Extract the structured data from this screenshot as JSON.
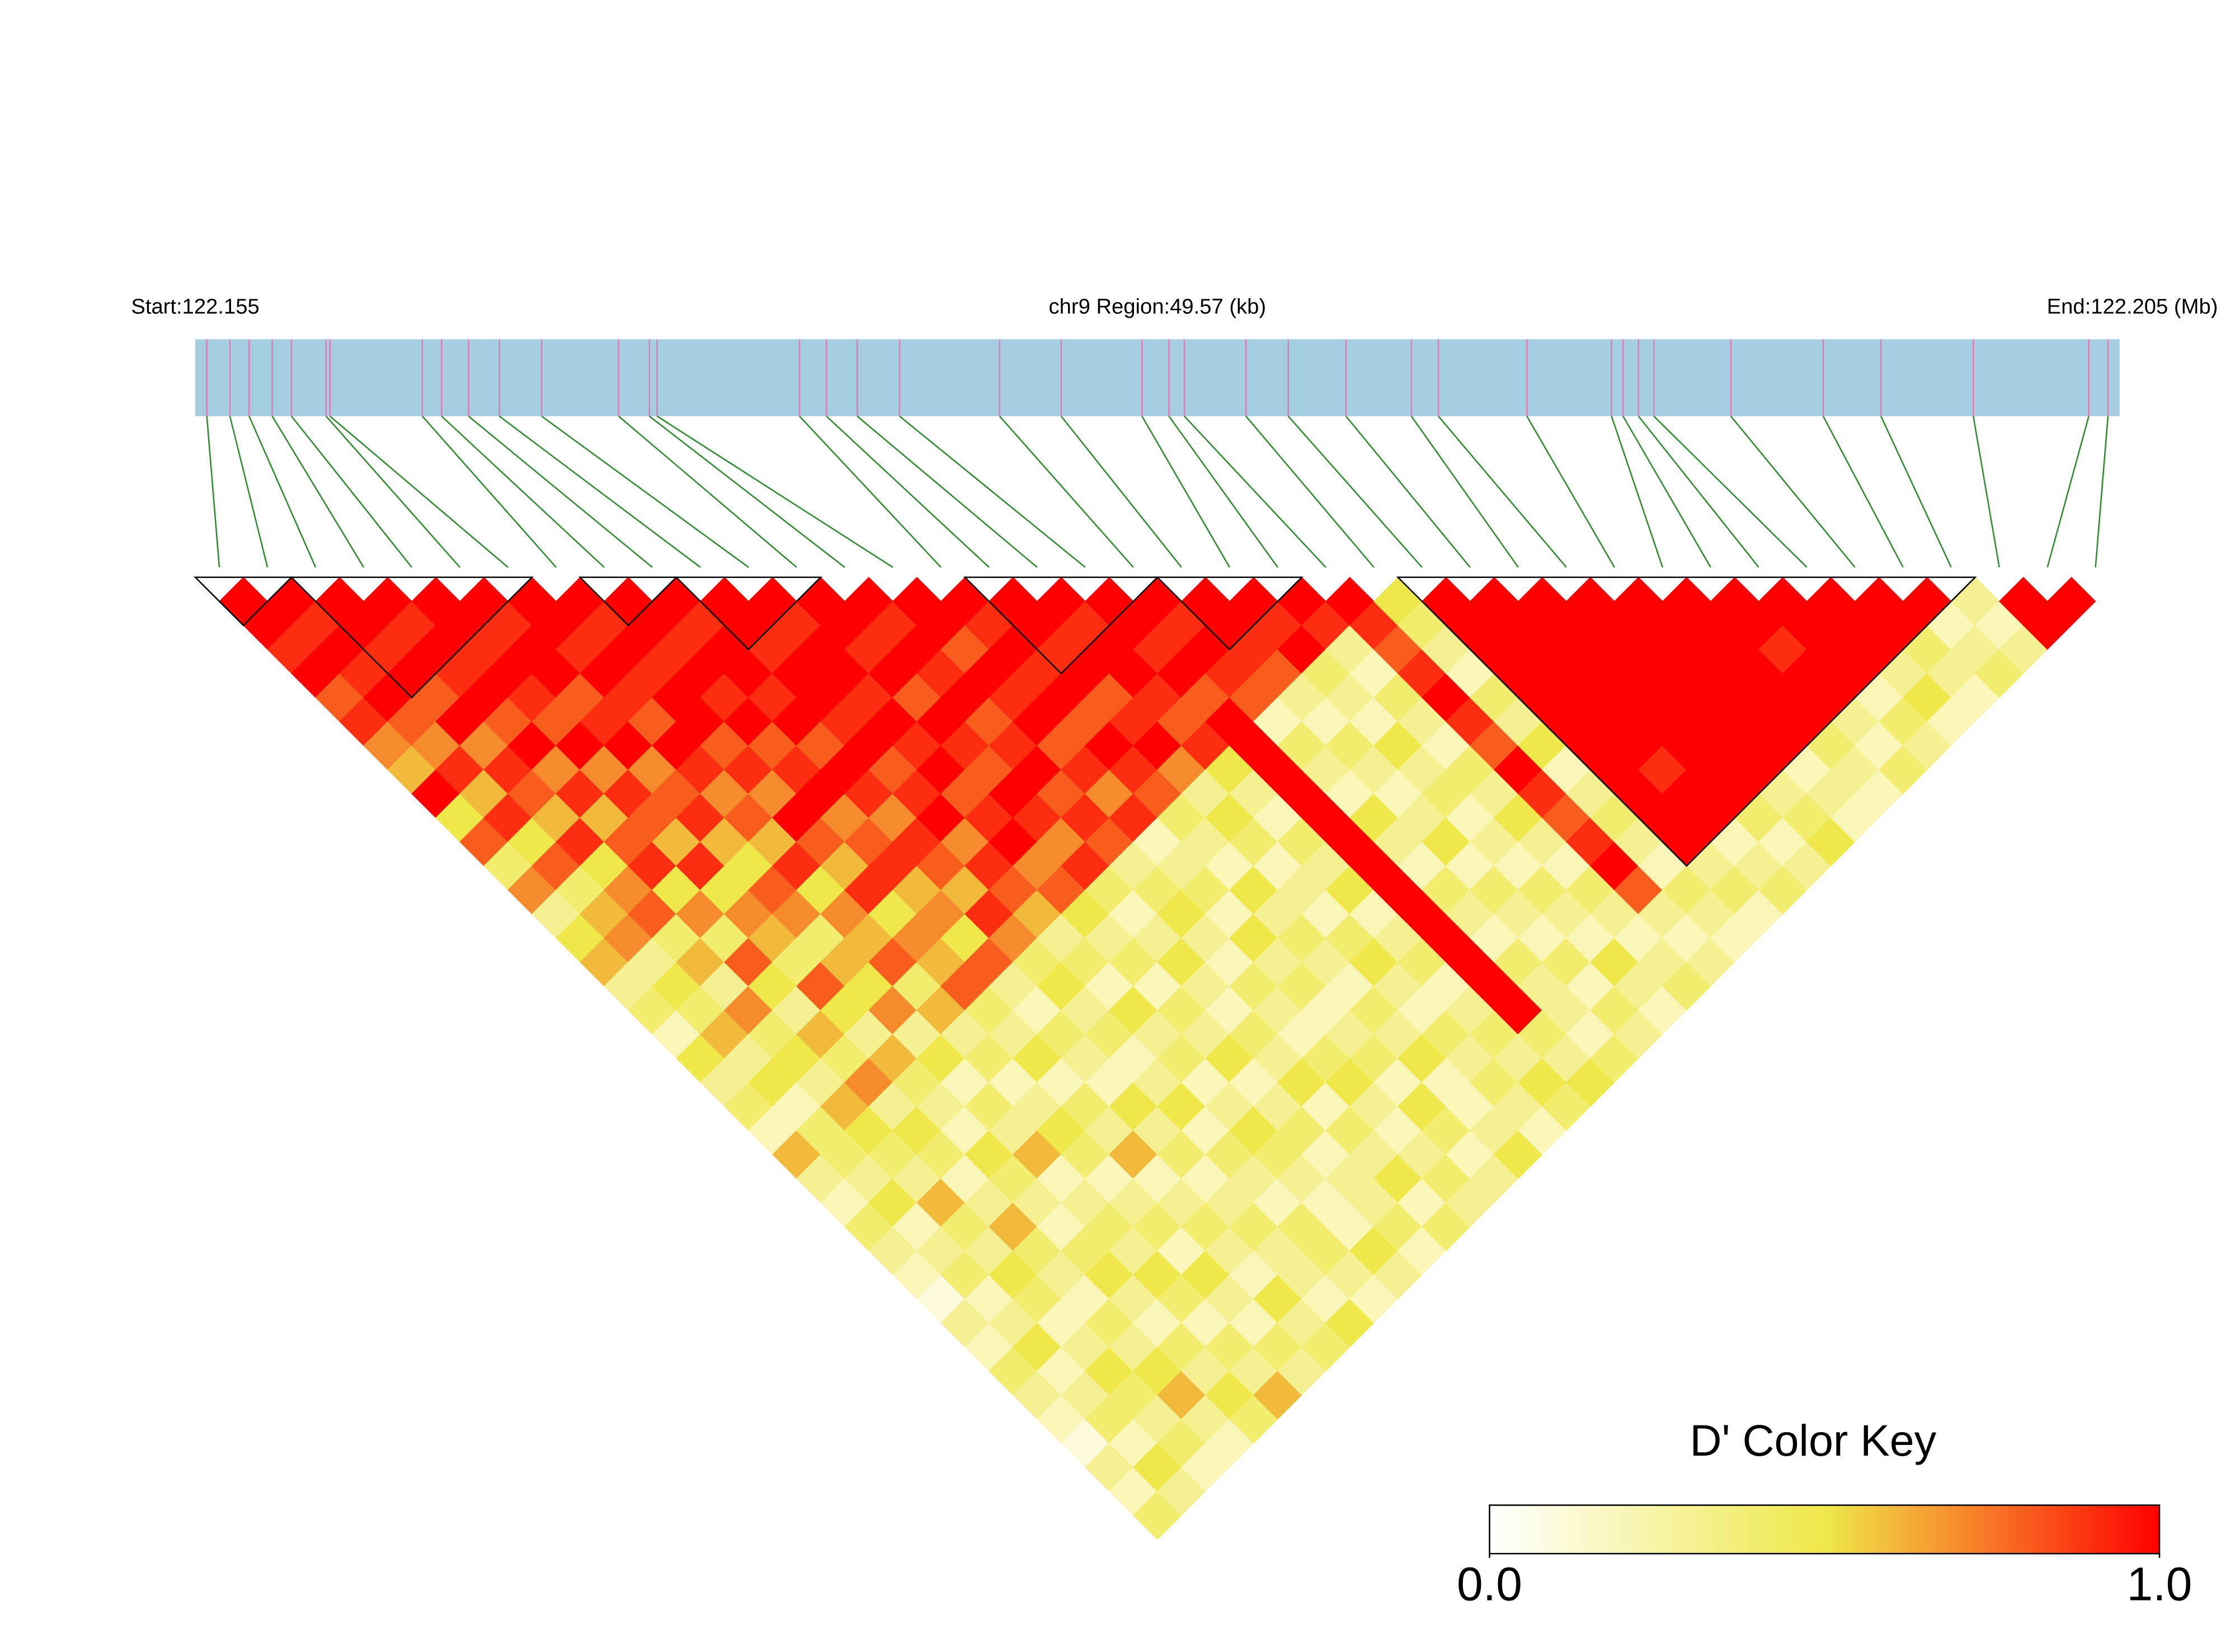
{
  "chart_data": {
    "type": "ld-heatmap",
    "region_start_label": "Start:122.155",
    "region_label": "chr9 Region:49.57 (kb)",
    "region_end_label": "End:122.205 (Mb)",
    "xlim": [
      122.155,
      122.205
    ],
    "track_color": "#a6cee3",
    "track_line_color": "#e07ab8",
    "connector_color": "#2e8b2e",
    "snp_positions": [
      122.1553,
      122.1559,
      122.1564,
      122.157,
      122.1575,
      122.1584,
      122.1585,
      122.1609,
      122.1614,
      122.1621,
      122.1629,
      122.164,
      122.166,
      122.1668,
      122.167,
      122.1707,
      122.1714,
      122.1722,
      122.1733,
      122.1759,
      122.1775,
      122.1796,
      122.1803,
      122.1807,
      122.1823,
      122.1834,
      122.1849,
      122.1866,
      122.1873,
      122.1896,
      122.1918,
      122.1921,
      122.1925,
      122.1929,
      122.1949,
      122.1973,
      122.1988,
      122.2012,
      122.2042,
      122.2047
    ],
    "matrix": [
      [
        1,
        1,
        0.9,
        1,
        0.8,
        0.9,
        0.7,
        0.6,
        1,
        0.5,
        0.8,
        0.4,
        0.7,
        0.3,
        0.5,
        0.6,
        0.3,
        0.4,
        0.2,
        0.5,
        0.3,
        0.4,
        0.2,
        0.6,
        0.3,
        0.2,
        0.4,
        0.3,
        0.2,
        0.1,
        0.3,
        0.2,
        0.4,
        0.3,
        0.2,
        0.1,
        0.3,
        0.2,
        0.4
      ],
      [
        1,
        0.9,
        1,
        0.9,
        1,
        0.8,
        0.7,
        0.9,
        0.6,
        0.9,
        0.5,
        0.8,
        0.4,
        0.6,
        0.7,
        0.3,
        0.5,
        0.4,
        0.6,
        0.3,
        0.5,
        0.2,
        0.4,
        0.4,
        0.3,
        0.5,
        0.2,
        0.3,
        0.4,
        0.2,
        0.3,
        0.5,
        0.2,
        0.3,
        0.4,
        0.2,
        0.5,
        0.3
      ],
      [
        1,
        1,
        0.9,
        1,
        0.8,
        1,
        0.7,
        0.9,
        0.8,
        0.6,
        0.9,
        0.5,
        0.7,
        0.8,
        0.4,
        0.6,
        0.3,
        0.7,
        0.4,
        0.5,
        0.3,
        0.6,
        0.5,
        0.4,
        0.3,
        0.6,
        0.4,
        0.3,
        0.5,
        0.4,
        0.2,
        0.3,
        0.5,
        0.4,
        0.3,
        0.4,
        0.2
      ],
      [
        1,
        0.9,
        1,
        0.9,
        1,
        0.8,
        1,
        0.7,
        0.9,
        0.6,
        0.8,
        0.9,
        0.5,
        0.7,
        0.4,
        0.8,
        0.5,
        0.3,
        0.6,
        0.4,
        0.7,
        0.3,
        0.5,
        0.4,
        0.2,
        0.3,
        0.6,
        0.4,
        0.3,
        0.2,
        0.4,
        0.3,
        0.5,
        0.6,
        0.3,
        0.2
      ],
      [
        1,
        1,
        0.9,
        1,
        0.9,
        0.8,
        1,
        0.7,
        0.9,
        0.8,
        0.6,
        0.9,
        0.5,
        0.7,
        0.6,
        0.4,
        0.8,
        0.5,
        0.3,
        0.6,
        0.4,
        0.3,
        0.2,
        0.5,
        0.4,
        0.3,
        0.2,
        0.4,
        0.5,
        0.3,
        0.2,
        0.4,
        0.3,
        0.5,
        0.4
      ],
      [
        1,
        0.9,
        1,
        1,
        0.8,
        0.9,
        1,
        0.7,
        0.8,
        0.9,
        0.6,
        0.5,
        0.8,
        0.7,
        0.4,
        0.6,
        0.5,
        0.7,
        0.3,
        0.5,
        0.2,
        0.4,
        0.3,
        0.6,
        0.2,
        0.3,
        0.4,
        0.3,
        0.5,
        0.4,
        0.2,
        0.4,
        0.3,
        0.6
      ],
      [
        1,
        1,
        0.9,
        1,
        0.9,
        0.8,
        1,
        0.9,
        0.7,
        0.8,
        0.6,
        0.9,
        0.5,
        0.7,
        0.6,
        0.8,
        0.4,
        0.6,
        0.3,
        0.4,
        0.2,
        0.3,
        0.5,
        0.4,
        0.2,
        0.3,
        0.4,
        0.2,
        0.5,
        0.3,
        0.2,
        0.4,
        0.3
      ],
      [
        1,
        0.9,
        1,
        0.9,
        1,
        1,
        0.8,
        0.9,
        0.7,
        1,
        0.8,
        0.6,
        0.9,
        0.5,
        0.7,
        0.6,
        0.8,
        0.4,
        0.3,
        0.5,
        0.2,
        0.4,
        0.3,
        0.6,
        0.2,
        0.3,
        0.4,
        0.3,
        0.2,
        0.5,
        0.3,
        0.4
      ],
      [
        1,
        1,
        0.9,
        1,
        0.9,
        1,
        0.8,
        0.9,
        1,
        0.7,
        0.8,
        0.9,
        0.6,
        0.7,
        0.5,
        0.8,
        0.3,
        0.2,
        0.4,
        0.3,
        0.2,
        0.5,
        0.3,
        0.4,
        0.2,
        0.3,
        0.4,
        0.3,
        0.3,
        0.2,
        0.5
      ],
      [
        1,
        0.9,
        1,
        1,
        0.9,
        1,
        0.8,
        1,
        0.9,
        0.7,
        0.9,
        0.8,
        0.6,
        0.9,
        0.7,
        0.4,
        0.5,
        0.3,
        0.4,
        0.2,
        0.3,
        0.5,
        0.2,
        0.4,
        0.3,
        0.2,
        0.4,
        0.4,
        0.3,
        0.2
      ],
      [
        1,
        1,
        0.9,
        1,
        1,
        0.9,
        1,
        0.8,
        0.9,
        1,
        0.7,
        0.9,
        0.8,
        0.6,
        0.3,
        0.4,
        0.2,
        0.5,
        0.3,
        0.4,
        0.2,
        0.3,
        0.5,
        0.4,
        0.3,
        0.2,
        0.2,
        0.5,
        0.3
      ],
      [
        1,
        0.9,
        1,
        1,
        0.9,
        1,
        0.9,
        1,
        0.8,
        0.9,
        1,
        0.7,
        0.8,
        0.5,
        0.3,
        0.4,
        0.2,
        0.4,
        0.3,
        0.5,
        0.2,
        0.3,
        0.4,
        0.2,
        0.3,
        0.3,
        0.4,
        0.2
      ],
      [
        1,
        1,
        0.9,
        1,
        0.8,
        1,
        0.9,
        0.8,
        1,
        0.9,
        0.7,
        0.9,
        0.4,
        0.2,
        0.3,
        0.5,
        0.3,
        0.2,
        0.4,
        0.3,
        0.5,
        0.2,
        0.4,
        0.3,
        0.5,
        0.2,
        0.4
      ],
      [
        1,
        0.9,
        1,
        0.9,
        1,
        0.8,
        0.9,
        1,
        0.8,
        0.9,
        0.8,
        0.3,
        0.4,
        0.5,
        0.3,
        0.2,
        0.4,
        0.3,
        0.2,
        0.4,
        0.5,
        0.3,
        0.2,
        0.3,
        0.4,
        0.3
      ],
      [
        1,
        1,
        0.8,
        1,
        0.9,
        1,
        0.8,
        0.9,
        0.7,
        0.9,
        0.2,
        0.3,
        0.4,
        0.2,
        0.5,
        0.3,
        0.4,
        0.2,
        0.3,
        0.4,
        0.2,
        0.5,
        0.4,
        0.2,
        0.3
      ],
      [
        1,
        0.9,
        1,
        0.9,
        1,
        0.8,
        1,
        0.9,
        0.8,
        0.4,
        0.3,
        0.2,
        0.5,
        0.3,
        0.4,
        0.3,
        0.2,
        0.4,
        0.3,
        0.5,
        0.2,
        0.2,
        0.3,
        0.5
      ],
      [
        1,
        1,
        0.9,
        1,
        0.8,
        0.9,
        1,
        0.7,
        0.3,
        0.5,
        0.4,
        0.2,
        0.3,
        0.2,
        0.4,
        0.5,
        0.3,
        0.2,
        0.4,
        0.3,
        0.4,
        0.3,
        0.2
      ],
      [
        1,
        0.9,
        1,
        1,
        0.9,
        0.8,
        0.9,
        0.5,
        0.3,
        0.2,
        0.4,
        0.3,
        0.5,
        0.2,
        0.3,
        0.4,
        0.2,
        0.3,
        0.4,
        0.3,
        0.5,
        0.4
      ],
      [
        1,
        1,
        0.9,
        1,
        0.8,
        1,
        1,
        1,
        1,
        1,
        1,
        1,
        1,
        1,
        1,
        1,
        1,
        1,
        0.4,
        0.3,
        0.5
      ],
      [
        1,
        0.9,
        1,
        0.9,
        0.8,
        0.2,
        0.4,
        0.3,
        0.2,
        0.5,
        0.3,
        0.2,
        0.4,
        0.3,
        0.2,
        0.4,
        0.3,
        0.3,
        0.2,
        0.4
      ],
      [
        1,
        1,
        0.9,
        0.8,
        0.3,
        0.2,
        0.4,
        0.3,
        0.2,
        0.3,
        0.5,
        0.2,
        0.4,
        0.3,
        0.2,
        0.4,
        0.2,
        0.4,
        0.3
      ],
      [
        1,
        0.9,
        1,
        0.4,
        0.3,
        0.2,
        0.5,
        0.3,
        0.4,
        0.2,
        0.3,
        0.2,
        0.4,
        0.3,
        0.2,
        0.5,
        0.3,
        0.2
      ],
      [
        1,
        0.9,
        0.3,
        0.2,
        0.4,
        0.3,
        0.2,
        0.4,
        0.3,
        0.5,
        0.3,
        0.2,
        0.4,
        0.3,
        0.2,
        0.3,
        0.4
      ],
      [
        1,
        0.9,
        0.8,
        0.9,
        1,
        0.9,
        0.8,
        1,
        0.9,
        0.8,
        0.9,
        1,
        0.8,
        0.3,
        0.2,
        0.3
      ],
      [
        0.5,
        0.4,
        0.3,
        0.2,
        0.4,
        0.3,
        0.5,
        0.2,
        0.3,
        0.4,
        0.3,
        0.2,
        0.4,
        0.3,
        0.2
      ],
      [
        1,
        1,
        1,
        1,
        1,
        1,
        1,
        1,
        1,
        1,
        1,
        0.3,
        0.4,
        0.2
      ],
      [
        1,
        1,
        1,
        1,
        1,
        1,
        1,
        0.9,
        1,
        1,
        0.2,
        0.3,
        0.4
      ],
      [
        1,
        1,
        1,
        1,
        1,
        1,
        1,
        1,
        1,
        0.4,
        0.2,
        0.3
      ],
      [
        1,
        1,
        1,
        1,
        1,
        1,
        1,
        1,
        0.3,
        0.4,
        0.5
      ],
      [
        1,
        1,
        1,
        1,
        1,
        1,
        1,
        0.2,
        0.3,
        0.2
      ],
      [
        1,
        1,
        1,
        1,
        1,
        1,
        0.4,
        0.3,
        0.2
      ],
      [
        1,
        1,
        0.9,
        1,
        1,
        0.3,
        0.2,
        0.4
      ],
      [
        1,
        1,
        1,
        1,
        0.2,
        0.4,
        0.3
      ],
      [
        1,
        1,
        1,
        0.3,
        0.5,
        0.2
      ],
      [
        1,
        1,
        0.4,
        0.3,
        0.2
      ],
      [
        1,
        0.2,
        0.3,
        0.4
      ],
      [
        0.3,
        0.2,
        0.3
      ],
      [
        1,
        1
      ],
      [
        1
      ]
    ],
    "blocks": [
      [
        0,
        1
      ],
      [
        2,
        6
      ],
      [
        8,
        9
      ],
      [
        10,
        12
      ],
      [
        16,
        19
      ],
      [
        20,
        22
      ],
      [
        25,
        36
      ]
    ],
    "colorscale": [
      "#ffffff",
      "#efe84a",
      "#ff0000"
    ],
    "key_title": "D' Color Key",
    "key_lim": [
      0,
      1
    ],
    "key_ticks": [
      {
        "value": 0,
        "label": "0.0"
      },
      {
        "value": 1,
        "label": "1.0"
      }
    ]
  }
}
